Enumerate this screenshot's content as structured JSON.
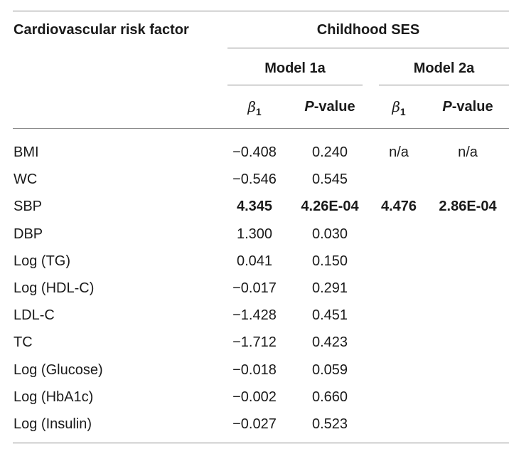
{
  "header": {
    "risk_factor": "Cardiovascular risk factor",
    "group": "Childhood SES",
    "model1": "Model 1a",
    "model2": "Model 2a",
    "beta_sym": "β",
    "beta_sub": "1",
    "pval_italic": "P",
    "pval_rest": "-value"
  },
  "rows": [
    {
      "factor": "BMI",
      "b1": "−0.408",
      "p1": "0.240",
      "b2": "n/a",
      "p2": "n/a",
      "bold": false
    },
    {
      "factor": "WC",
      "b1": "−0.546",
      "p1": "0.545",
      "b2": "",
      "p2": "",
      "bold": false
    },
    {
      "factor": "SBP",
      "b1": "4.345",
      "p1": "4.26E-04",
      "b2": "4.476",
      "p2": "2.86E-04",
      "bold": true
    },
    {
      "factor": "DBP",
      "b1": "1.300",
      "p1": "0.030",
      "b2": "",
      "p2": "",
      "bold": false
    },
    {
      "factor": "Log (TG)",
      "b1": "0.041",
      "p1": "0.150",
      "b2": "",
      "p2": "",
      "bold": false
    },
    {
      "factor": "Log (HDL-C)",
      "b1": "−0.017",
      "p1": "0.291",
      "b2": "",
      "p2": "",
      "bold": false
    },
    {
      "factor": "LDL-C",
      "b1": "−1.428",
      "p1": "0.451",
      "b2": "",
      "p2": "",
      "bold": false
    },
    {
      "factor": "TC",
      "b1": "−1.712",
      "p1": "0.423",
      "b2": "",
      "p2": "",
      "bold": false
    },
    {
      "factor": "Log (Glucose)",
      "b1": "−0.018",
      "p1": "0.059",
      "b2": "",
      "p2": "",
      "bold": false
    },
    {
      "factor": "Log (HbA1c)",
      "b1": "−0.002",
      "p1": "0.660",
      "b2": "",
      "p2": "",
      "bold": false
    },
    {
      "factor": "Log (Insulin)",
      "b1": "−0.027",
      "p1": "0.523",
      "b2": "",
      "p2": "",
      "bold": false
    }
  ]
}
